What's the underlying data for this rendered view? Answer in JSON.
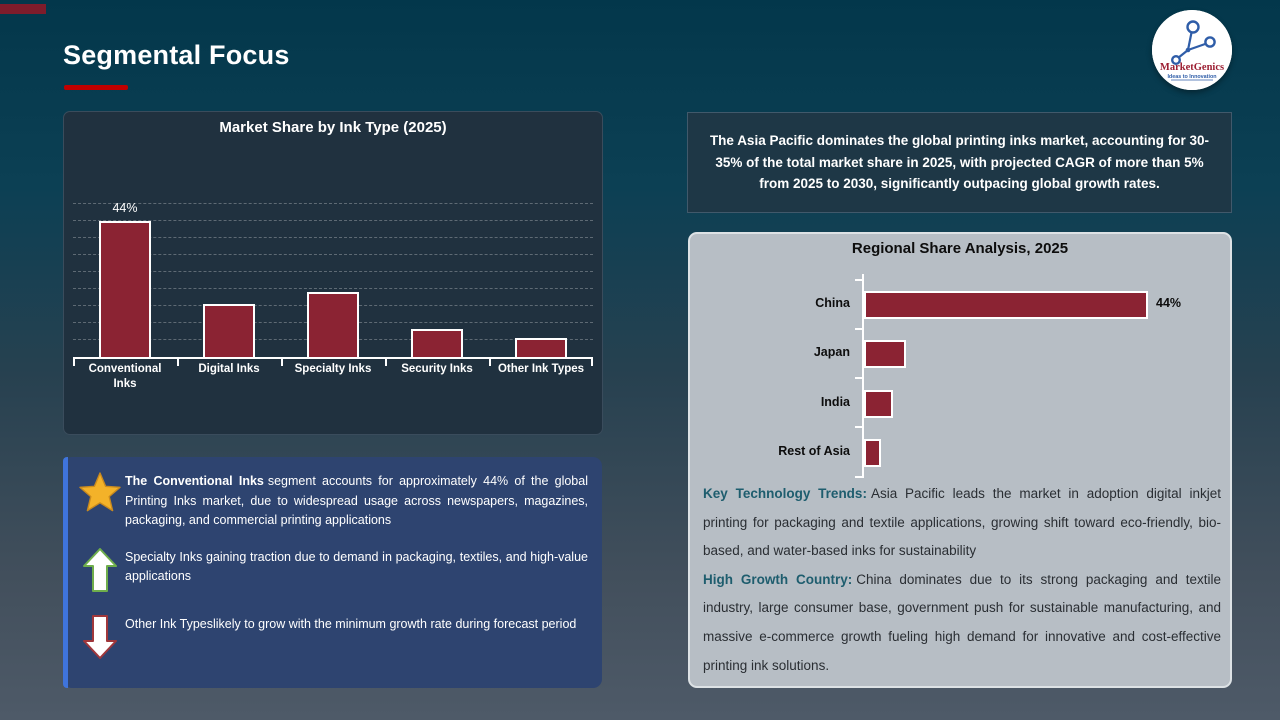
{
  "slide": {
    "title": "Segmental Focus"
  },
  "logo": {
    "name": "MarketGenics",
    "tagline": "Ideas to Innovation"
  },
  "colors": {
    "accent_red": "#C00000",
    "bar_maroon": "#8B2333",
    "insight_panel_blue": "#2E4470",
    "insight_stripe_blue": "#3F74DC",
    "note_label_teal": "#1E5D6E",
    "star_gold": "#F3B229",
    "arrow_up_green": "#6FAE4C",
    "arrow_down_red": "#A0373B"
  },
  "asia_callout": {
    "text": "The Asia Pacific dominates the global printing inks market, accounting for 30-35% of the total market share in 2025, with projected CAGR of more than 5% from 2025 to 2030, significantly outpacing global growth rates."
  },
  "chart_data": [
    {
      "type": "bar",
      "title": "Market Share by Ink Type (2025)",
      "categories": [
        "Conventional Inks",
        "Digital Inks",
        "Specialty Inks",
        "Security Inks",
        "Other Ink Types"
      ],
      "values": [
        44,
        17,
        21,
        9,
        6
      ],
      "data_labels": [
        "44%",
        "",
        "",
        "",
        ""
      ],
      "ylim": [
        0,
        50
      ],
      "grid": "dashed-horizontal",
      "legend": "none",
      "bar_color": "#8B2333"
    },
    {
      "type": "bar-horizontal",
      "title": "Regional Share Analysis, 2025",
      "categories": [
        "China",
        "Japan",
        "India",
        "Rest of Asia"
      ],
      "values": [
        44,
        6,
        4,
        2
      ],
      "data_labels": [
        "44%",
        "",
        "",
        ""
      ],
      "xlim": [
        0,
        44
      ],
      "grid": "off",
      "legend": "none",
      "bar_color": "#8B2333"
    }
  ],
  "insights": {
    "items": [
      {
        "icon": "star-icon",
        "lead": "The Conventional Inks",
        "text": "segment accounts for approximately 44% of the global Printing Inks market, due to widespread usage across newspapers, magazines, packaging, and commercial printing applications"
      },
      {
        "icon": "arrow-up-icon",
        "lead": "",
        "text": "Specialty Inks gaining traction due to demand in packaging, textiles, and high-value applications"
      },
      {
        "icon": "arrow-down-icon",
        "lead": "",
        "text": "Other Ink Typeslikely to grow with the minimum growth rate during forecast period"
      }
    ]
  },
  "regional_notes": {
    "items": [
      {
        "label": "Key Technology Trends:",
        "text": "Asia Pacific leads the market in adoption digital inkjet printing for packaging and textile applications, growing shift toward eco-friendly, bio-based, and water-based inks for sustainability"
      },
      {
        "label": "High Growth Country:",
        "text": "China dominates due to its strong packaging and textile industry, large consumer base, government push for sustainable manufacturing, and massive e-commerce growth fueling high demand for innovative and cost-effective printing ink solutions."
      }
    ]
  }
}
